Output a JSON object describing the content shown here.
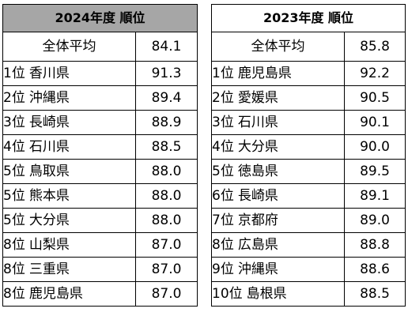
{
  "tables": [
    {
      "id": "t2024",
      "title": "2024年度 順位",
      "average_label": "全体平均",
      "average_value": "84.1",
      "rows": [
        {
          "rank": "1位",
          "pref": "香川県",
          "value": "91.3"
        },
        {
          "rank": "2位",
          "pref": "沖縄県",
          "value": "89.4"
        },
        {
          "rank": "3位",
          "pref": "長崎県",
          "value": "88.9"
        },
        {
          "rank": "4位",
          "pref": "石川県",
          "value": "88.5"
        },
        {
          "rank": "5位",
          "pref": "鳥取県",
          "value": "88.0"
        },
        {
          "rank": "5位",
          "pref": "熊本県",
          "value": "88.0"
        },
        {
          "rank": "5位",
          "pref": "大分県",
          "value": "88.0"
        },
        {
          "rank": "8位",
          "pref": "山梨県",
          "value": "87.0"
        },
        {
          "rank": "8位",
          "pref": "三重県",
          "value": "87.0"
        },
        {
          "rank": "8位",
          "pref": "鹿児島県",
          "value": "87.0"
        }
      ]
    },
    {
      "id": "t2023",
      "title": "2023年度 順位",
      "average_label": "全体平均",
      "average_value": "85.8",
      "rows": [
        {
          "rank": "1位",
          "pref": "鹿児島県",
          "value": "92.2"
        },
        {
          "rank": "2位",
          "pref": "愛媛県",
          "value": "90.5"
        },
        {
          "rank": "3位",
          "pref": "石川県",
          "value": "90.1"
        },
        {
          "rank": "4位",
          "pref": "大分県",
          "value": "90.0"
        },
        {
          "rank": "5位",
          "pref": "徳島県",
          "value": "89.5"
        },
        {
          "rank": "6位",
          "pref": "長崎県",
          "value": "89.1"
        },
        {
          "rank": "7位",
          "pref": "京都府",
          "value": "89.0"
        },
        {
          "rank": "8位",
          "pref": "広島県",
          "value": "88.8"
        },
        {
          "rank": "9位",
          "pref": "沖縄県",
          "value": "88.6"
        },
        {
          "rank": "10位",
          "pref": "島根県",
          "value": "88.5"
        }
      ]
    }
  ],
  "colors": {
    "header_2024_bg": "#a6a6a6",
    "header_2023_bg": "#ffffff",
    "border": "#000000"
  }
}
